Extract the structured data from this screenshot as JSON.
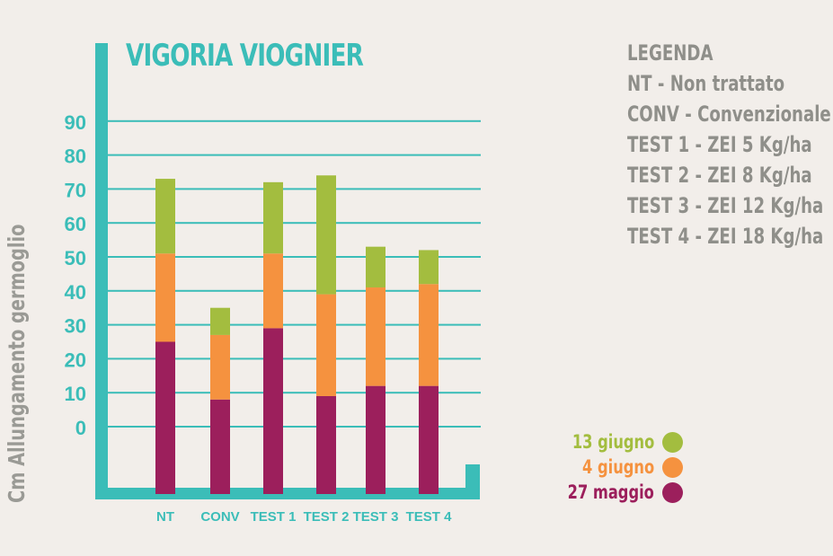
{
  "chart_data": {
    "type": "bar",
    "stacked": true,
    "title": "VIGORIA VIOGNIER",
    "ylabel": "Cm Allungamento germoglio",
    "xlabel": "",
    "ylim": [
      0,
      90
    ],
    "yticks": [
      0,
      10,
      20,
      30,
      40,
      50,
      60,
      70,
      80,
      90
    ],
    "grid": true,
    "categories": [
      "NT",
      "CONV",
      "TEST 1",
      "TEST 2",
      "TEST 3",
      "TEST 4"
    ],
    "series": [
      {
        "name": "27 maggio",
        "color": "#9c1f5c",
        "values": [
          25,
          8,
          29,
          9,
          12,
          12
        ]
      },
      {
        "name": "4 giugno",
        "color": "#f5923f",
        "values": [
          26,
          19,
          22,
          30,
          29,
          30
        ]
      },
      {
        "name": "13 giugno",
        "color": "#a3bd3f",
        "values": [
          22,
          8,
          21,
          35,
          12,
          10
        ]
      }
    ],
    "legend_series_order": [
      "13 giugno",
      "4 giugno",
      "27 maggio"
    ],
    "legend_series_placement": "bottom-right",
    "colors": {
      "axis": "#3bbdb8",
      "gridline": "#3bbdb8",
      "background": "#f2eeea",
      "legend_text": "#8f8f8a"
    }
  },
  "legend": {
    "heading": "LEGENDA",
    "items": [
      "NT - Non trattato",
      "CONV - Convenzionale",
      "TEST 1 - ZEI 5 Kg/ha",
      "TEST 2 - ZEI 8 Kg/ha",
      "TEST 3 - ZEI 12 Kg/ha",
      "TEST 4 - ZEI 18 Kg/ha"
    ]
  }
}
